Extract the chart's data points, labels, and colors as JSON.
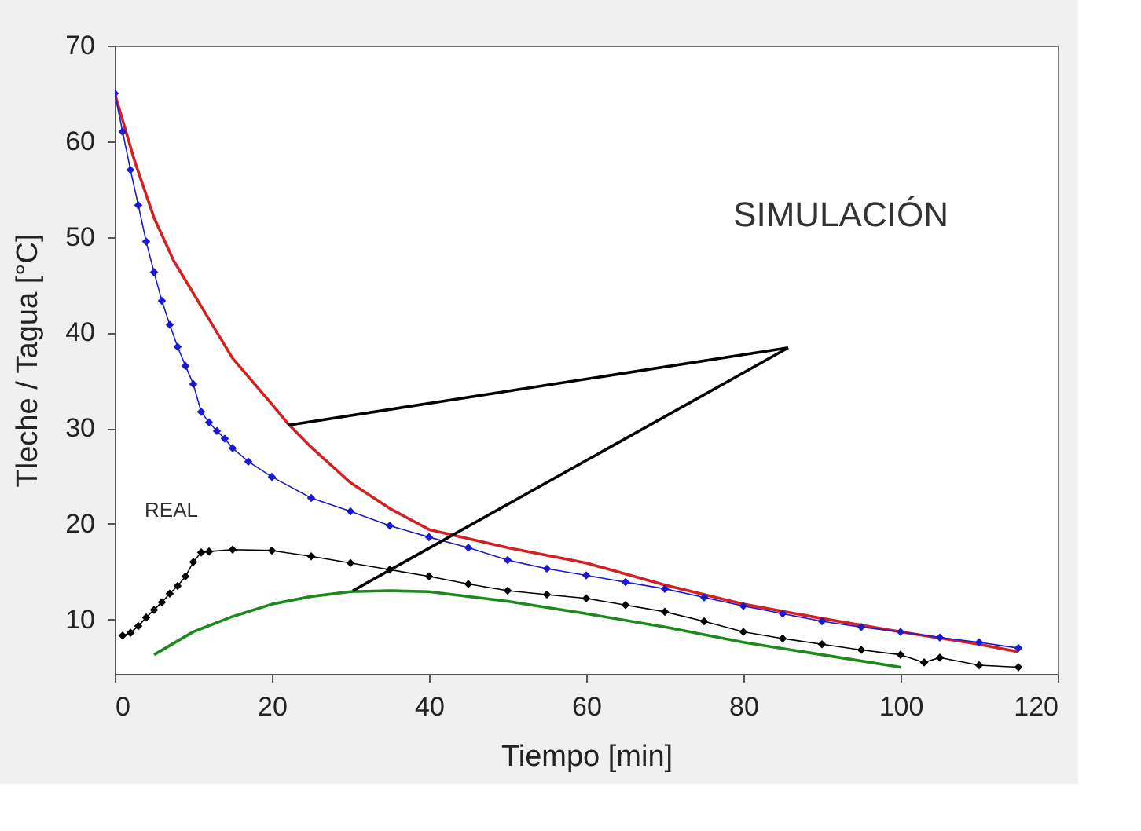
{
  "chart_data": {
    "type": "line",
    "xlabel": "Tiempo [min]",
    "ylabel": "Tleche / Tagua [°C]",
    "xlim": [
      0,
      120
    ],
    "ylim": [
      4.3,
      70
    ],
    "xticks": [
      0,
      20,
      40,
      60,
      80,
      100,
      120
    ],
    "yticks": [
      10,
      20,
      30,
      40,
      50,
      60,
      70
    ],
    "grid": false,
    "series": [
      {
        "marker": "none",
        "color": "#d42020",
        "x": [
          0,
          2.5,
          5,
          7.5,
          10,
          15,
          20,
          22,
          25,
          30,
          35,
          40,
          50,
          60,
          70,
          80,
          90,
          100,
          110,
          115
        ],
        "values": [
          65,
          58,
          52,
          47.5,
          44.1,
          37.3,
          32.5,
          30.5,
          28,
          24.3,
          21.6,
          19.4,
          17.5,
          15.9,
          13.6,
          11.6,
          10.1,
          8.7,
          7.4,
          6.6
        ]
      },
      {
        "marker": "diamond",
        "color": "#1a1ad0",
        "x": [
          0,
          1,
          2,
          3,
          4,
          5,
          6,
          7,
          8,
          9,
          10,
          11,
          12,
          13,
          14,
          15,
          17,
          20,
          25,
          30,
          35,
          40,
          45,
          50,
          55,
          60,
          65,
          70,
          75,
          80,
          85,
          90,
          95,
          100,
          105,
          110,
          115
        ],
        "values": [
          65,
          61,
          57,
          53.3,
          49.5,
          46.3,
          43.3,
          40.8,
          38.5,
          36.5,
          34.6,
          31.7,
          30.6,
          29.7,
          28.9,
          27.9,
          26.5,
          24.9,
          22.7,
          21.3,
          19.8,
          18.6,
          17.5,
          16.2,
          15.3,
          14.6,
          13.9,
          13.2,
          12.3,
          11.4,
          10.6,
          9.8,
          9.2,
          8.7,
          8.1,
          7.6,
          7.0
        ]
      },
      {
        "marker": "diamond",
        "color": "#000000",
        "x": [
          1,
          2,
          3,
          4,
          5,
          6,
          7,
          8,
          9,
          10,
          11,
          12,
          15,
          20,
          25,
          30,
          35,
          40,
          45,
          50,
          55,
          60,
          65,
          70,
          75,
          80,
          85,
          90,
          95,
          100,
          103,
          105,
          110,
          115
        ],
        "values": [
          8.3,
          8.6,
          9.3,
          10.2,
          11,
          11.8,
          12.7,
          13.5,
          14.5,
          16.0,
          17,
          17.1,
          17.3,
          17.2,
          16.6,
          15.9,
          15.2,
          14.5,
          13.7,
          13.0,
          12.6,
          12.2,
          11.5,
          10.8,
          9.8,
          8.7,
          8.0,
          7.4,
          6.8,
          6.3,
          5.5,
          6.0,
          5.2,
          5.0
        ]
      },
      {
        "marker": "none",
        "color": "#1a8a1a",
        "x": [
          5,
          10,
          15,
          20,
          25,
          30,
          35,
          40,
          50,
          60,
          70,
          80,
          90,
          100
        ],
        "values": [
          6.3,
          8.7,
          10.3,
          11.6,
          12.4,
          12.9,
          13.0,
          12.9,
          11.9,
          10.6,
          9.2,
          7.6,
          6.3,
          5.0
        ]
      },
      {
        "marker": "none",
        "color": "#000000",
        "x": [
          85.7,
          22
        ],
        "values": [
          38.4,
          30.3
        ]
      },
      {
        "marker": "none",
        "color": "#000000",
        "x": [
          85.7,
          30.3
        ],
        "values": [
          38.4,
          13
        ]
      }
    ],
    "annotations": [
      "SIMULACIÓN",
      "REAL"
    ]
  }
}
